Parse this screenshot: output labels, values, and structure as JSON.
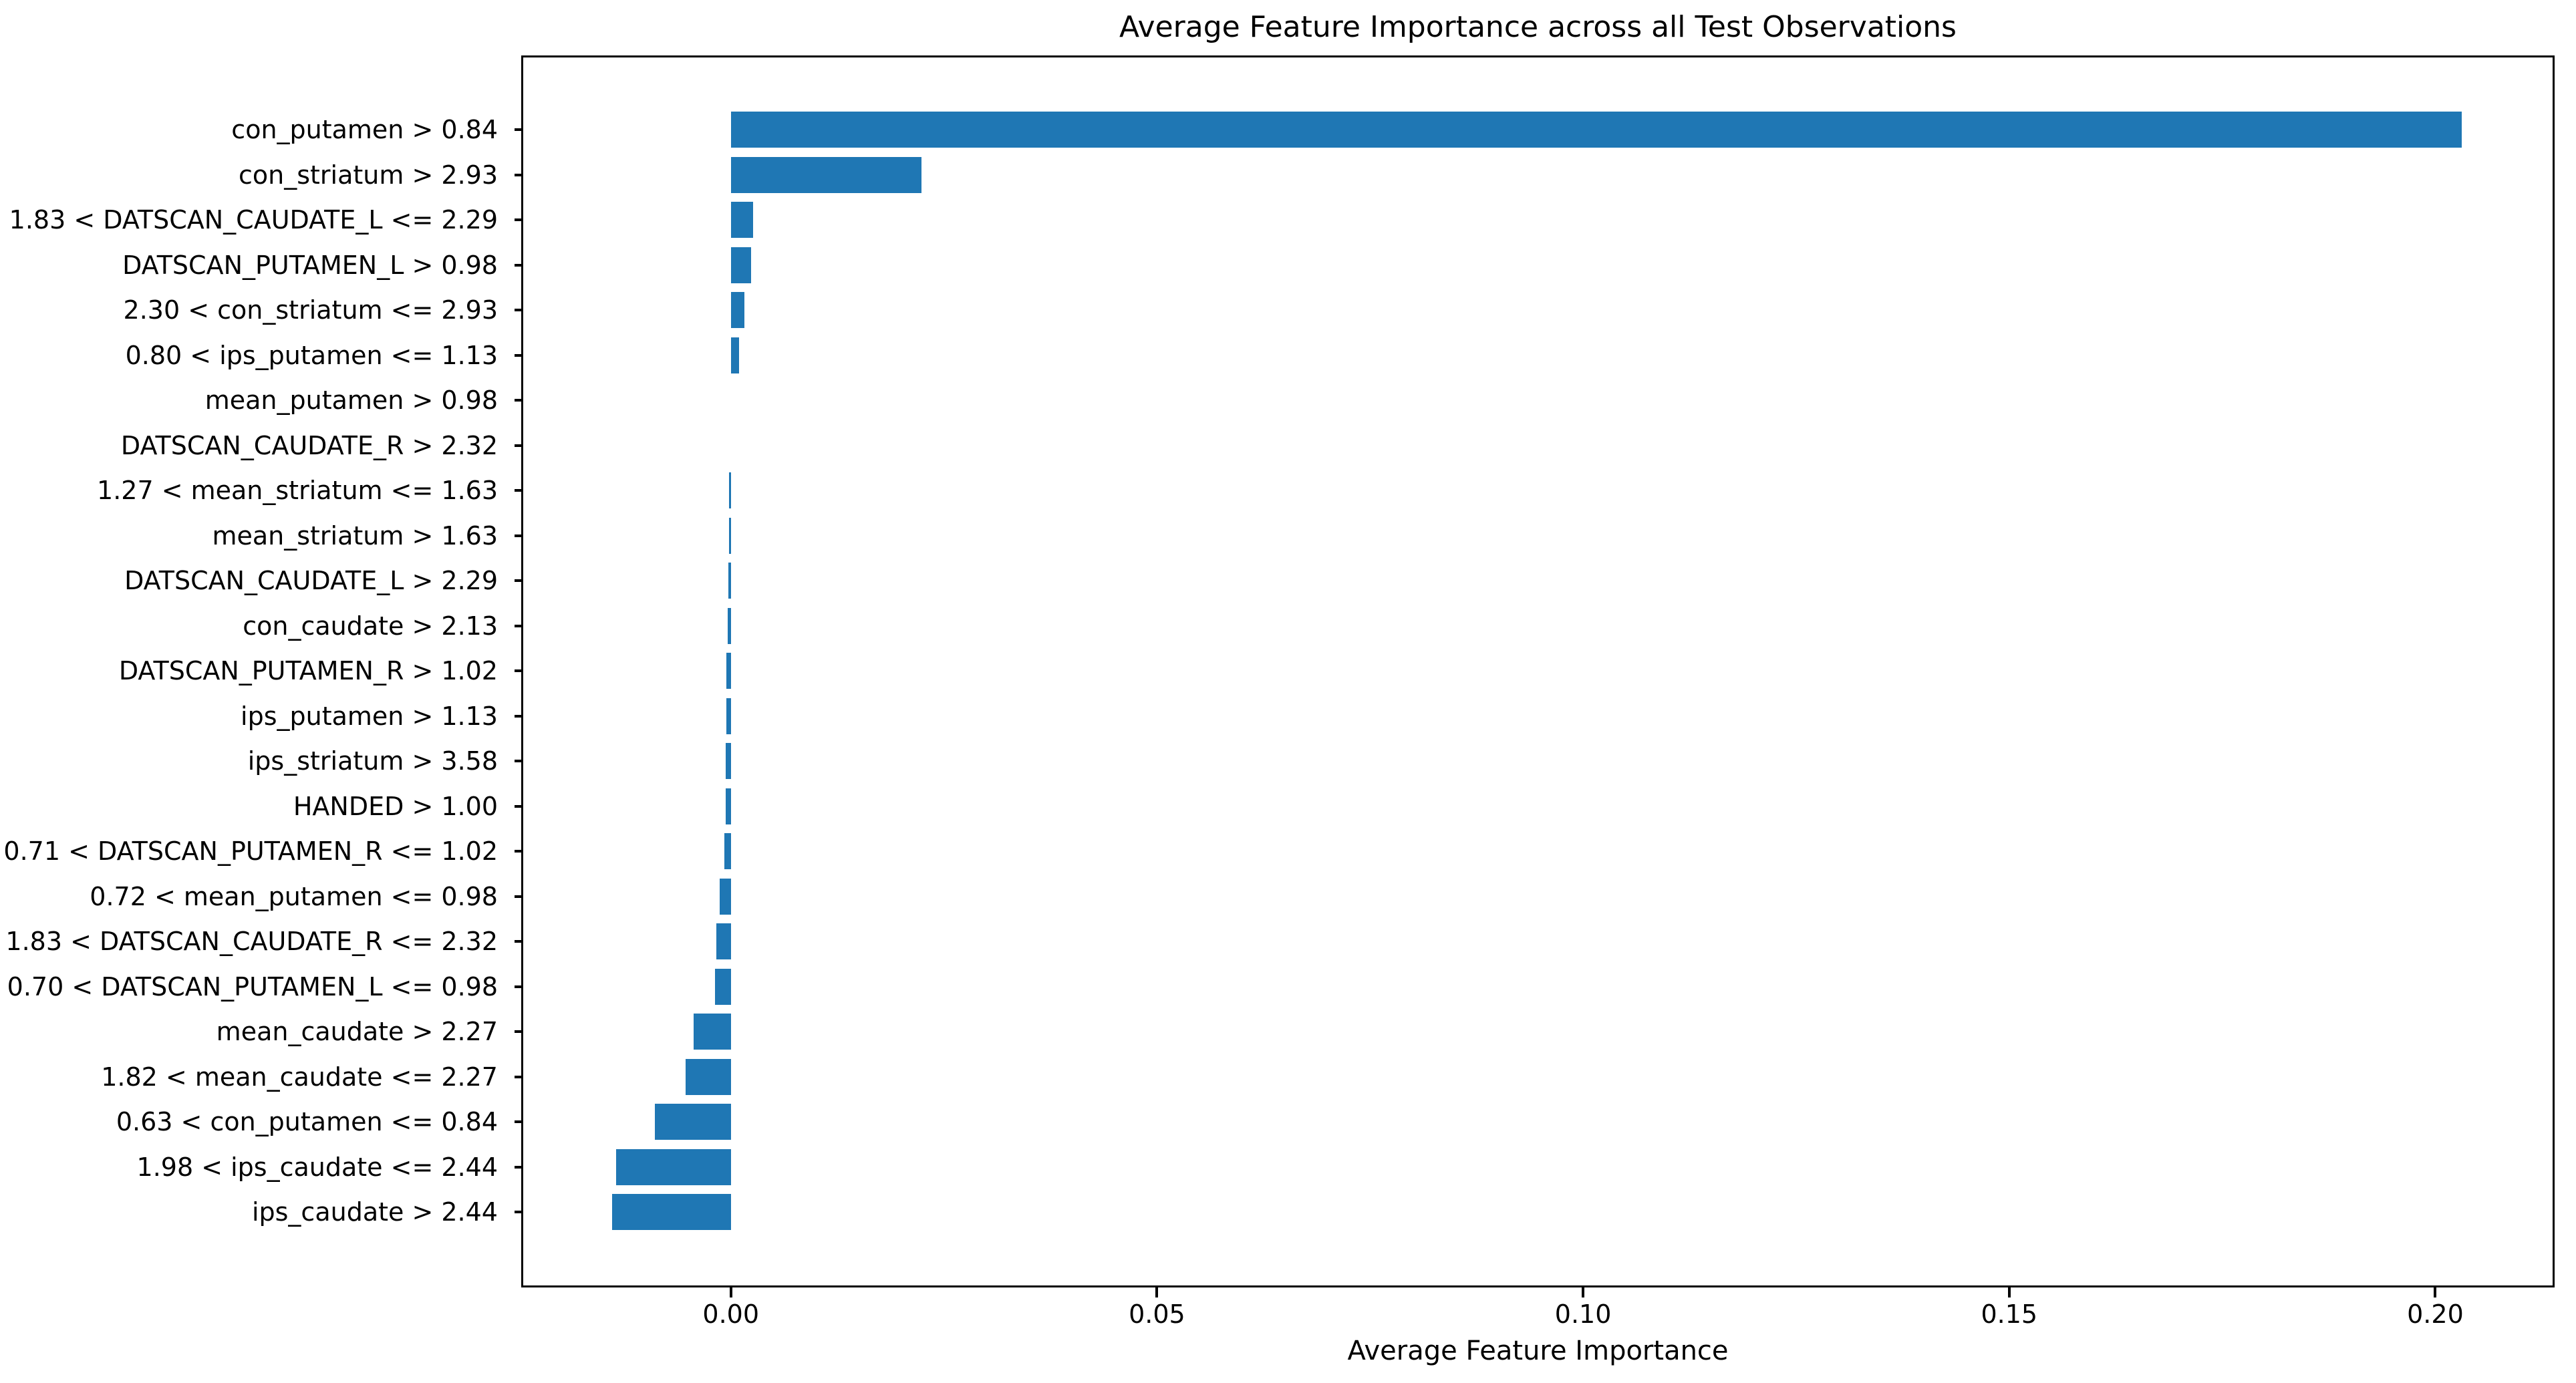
{
  "figure": {
    "background": "#ffffff"
  },
  "chart_data": {
    "type": "bar",
    "orientation": "horizontal",
    "title": "Average Feature Importance across all Test Observations",
    "xlabel": "Average Feature Importance",
    "ylabel": "",
    "grid": false,
    "bar_color": "#1f77b4",
    "text_color": "#000000",
    "xlim": [
      -0.0246,
      0.214
    ],
    "xticks": [
      0.0,
      0.05,
      0.1,
      0.15,
      0.2
    ],
    "xtick_labels": [
      "0.00",
      "0.05",
      "0.10",
      "0.15",
      "0.20"
    ],
    "categories": [
      "con_putamen > 0.84",
      "con_striatum > 2.93",
      "1.83 < DATSCAN_CAUDATE_L <= 2.29",
      "DATSCAN_PUTAMEN_L > 0.98",
      "2.30 < con_striatum <= 2.93",
      "0.80 < ips_putamen <= 1.13",
      "mean_putamen > 0.98",
      "DATSCAN_CAUDATE_R > 2.32",
      "1.27 < mean_striatum <= 1.63",
      "mean_striatum > 1.63",
      "DATSCAN_CAUDATE_L > 2.29",
      "con_caudate > 2.13",
      "DATSCAN_PUTAMEN_R > 1.02",
      "ips_putamen > 1.13",
      "ips_striatum > 3.58",
      "HANDED > 1.00",
      "0.71 < DATSCAN_PUTAMEN_R <= 1.02",
      "0.72 < mean_putamen <= 0.98",
      "1.83 < DATSCAN_CAUDATE_R <= 2.32",
      "0.70 < DATSCAN_PUTAMEN_L <= 0.98",
      "mean_caudate > 2.27",
      "1.82 < mean_caudate <= 2.27",
      "0.63 < con_putamen <= 0.84",
      "1.98 < ips_caudate <= 2.44",
      "ips_caudate > 2.44"
    ],
    "values": [
      0.2031,
      0.0224,
      0.0026,
      0.0024,
      0.0016,
      0.001,
      0.0,
      0.0,
      -0.0002,
      -0.0002,
      -0.0003,
      -0.0004,
      -0.0005,
      -0.0005,
      -0.0006,
      -0.0006,
      -0.0008,
      -0.0013,
      -0.0017,
      -0.0019,
      -0.0044,
      -0.0053,
      -0.0089,
      -0.0135,
      -0.0139
    ]
  }
}
